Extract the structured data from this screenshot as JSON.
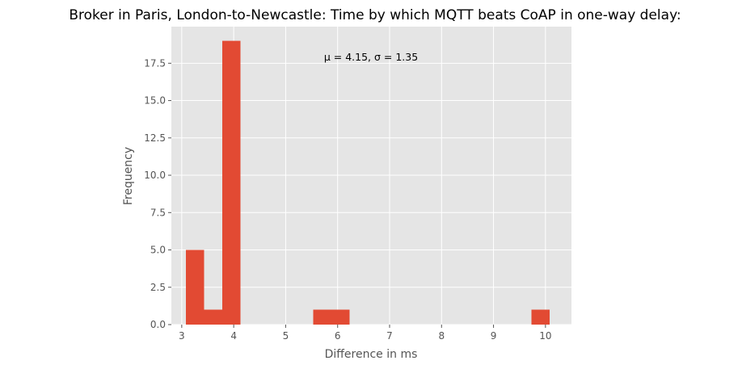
{
  "chart_data": {
    "type": "bar",
    "title": "Broker in Paris, London-to-Newcastle: Time by which MQTT beats CoAP in one-way delay:",
    "xlabel": "Difference in ms",
    "ylabel": "Frequency",
    "annotation": "μ = 4.15,  σ = 1.35",
    "xlim": [
      2.8,
      10.5
    ],
    "ylim": [
      0,
      19.95
    ],
    "xticks": [
      3,
      4,
      5,
      6,
      7,
      8,
      9,
      10
    ],
    "yticks": [
      0.0,
      2.5,
      5.0,
      7.5,
      10.0,
      12.5,
      15.0,
      17.5
    ],
    "bin_edges": [
      3.08,
      3.43,
      3.78,
      4.13,
      4.48,
      4.83,
      5.18,
      5.53,
      5.88,
      6.23,
      6.58,
      6.93,
      7.28,
      7.63,
      7.98,
      8.33,
      8.68,
      9.03,
      9.38,
      9.73,
      10.08
    ],
    "values": [
      5,
      1,
      19,
      0,
      0,
      0,
      0,
      1,
      1,
      0,
      0,
      0,
      0,
      0,
      0,
      0,
      0,
      0,
      0,
      1
    ],
    "bar_color": "#E24A33",
    "background_color": "#E5E5E5",
    "grid": true
  }
}
